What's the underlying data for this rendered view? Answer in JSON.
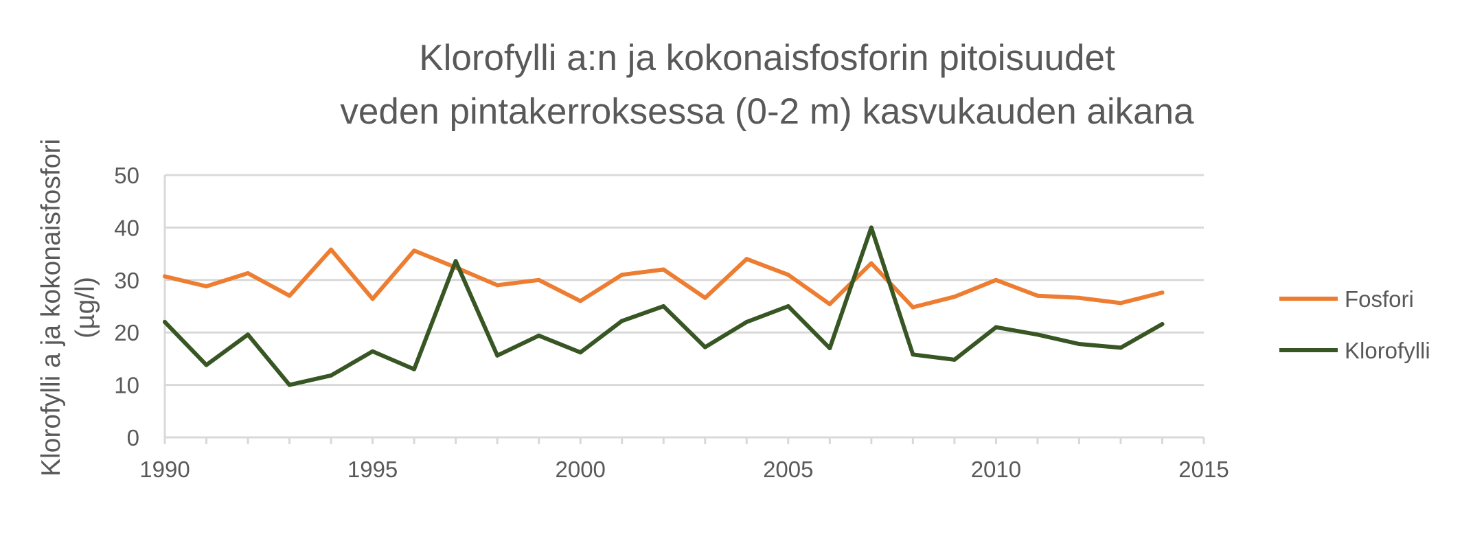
{
  "chart_data": {
    "type": "line",
    "title_lines": [
      "Klorofylli a:n ja kokonaisfosforin pitoisuudet",
      "veden pintakerroksessa (0-2 m) kasvukauden aikana"
    ],
    "ylabel_lines": [
      "Klorofylli a ja kokonaisfosfori",
      "(µg/l)"
    ],
    "xlabel": "",
    "xlim": [
      1990,
      2015
    ],
    "ylim": [
      0,
      50
    ],
    "x_ticks": [
      1990,
      1995,
      2000,
      2005,
      2010,
      2015
    ],
    "y_ticks": [
      0,
      10,
      20,
      30,
      40,
      50
    ],
    "grid": true,
    "legend_position": "right",
    "x": [
      1990,
      1991,
      1992,
      1993,
      1994,
      1995,
      1996,
      1997,
      1998,
      1999,
      2000,
      2001,
      2002,
      2003,
      2004,
      2005,
      2006,
      2007,
      2008,
      2009,
      2010,
      2011,
      2012,
      2013,
      2014
    ],
    "series": [
      {
        "name": "Fosfori",
        "color": "#ED7D31",
        "values": [
          30.7,
          28.8,
          31.3,
          27.0,
          35.8,
          26.4,
          35.6,
          32.4,
          29.0,
          30.0,
          26.0,
          31.0,
          32.0,
          26.6,
          34.0,
          31.0,
          25.4,
          33.2,
          24.8,
          26.8,
          30.0,
          27.0,
          26.6,
          25.6,
          27.6
        ]
      },
      {
        "name": "Klorofylli",
        "color": "#375623",
        "values": [
          22.0,
          13.8,
          19.6,
          10.0,
          11.8,
          16.4,
          13.0,
          33.6,
          15.6,
          19.4,
          16.2,
          22.2,
          25.0,
          17.2,
          22.0,
          25.0,
          17.0,
          40.0,
          15.8,
          14.8,
          21.0,
          19.6,
          17.8,
          17.1,
          21.6
        ]
      }
    ]
  }
}
